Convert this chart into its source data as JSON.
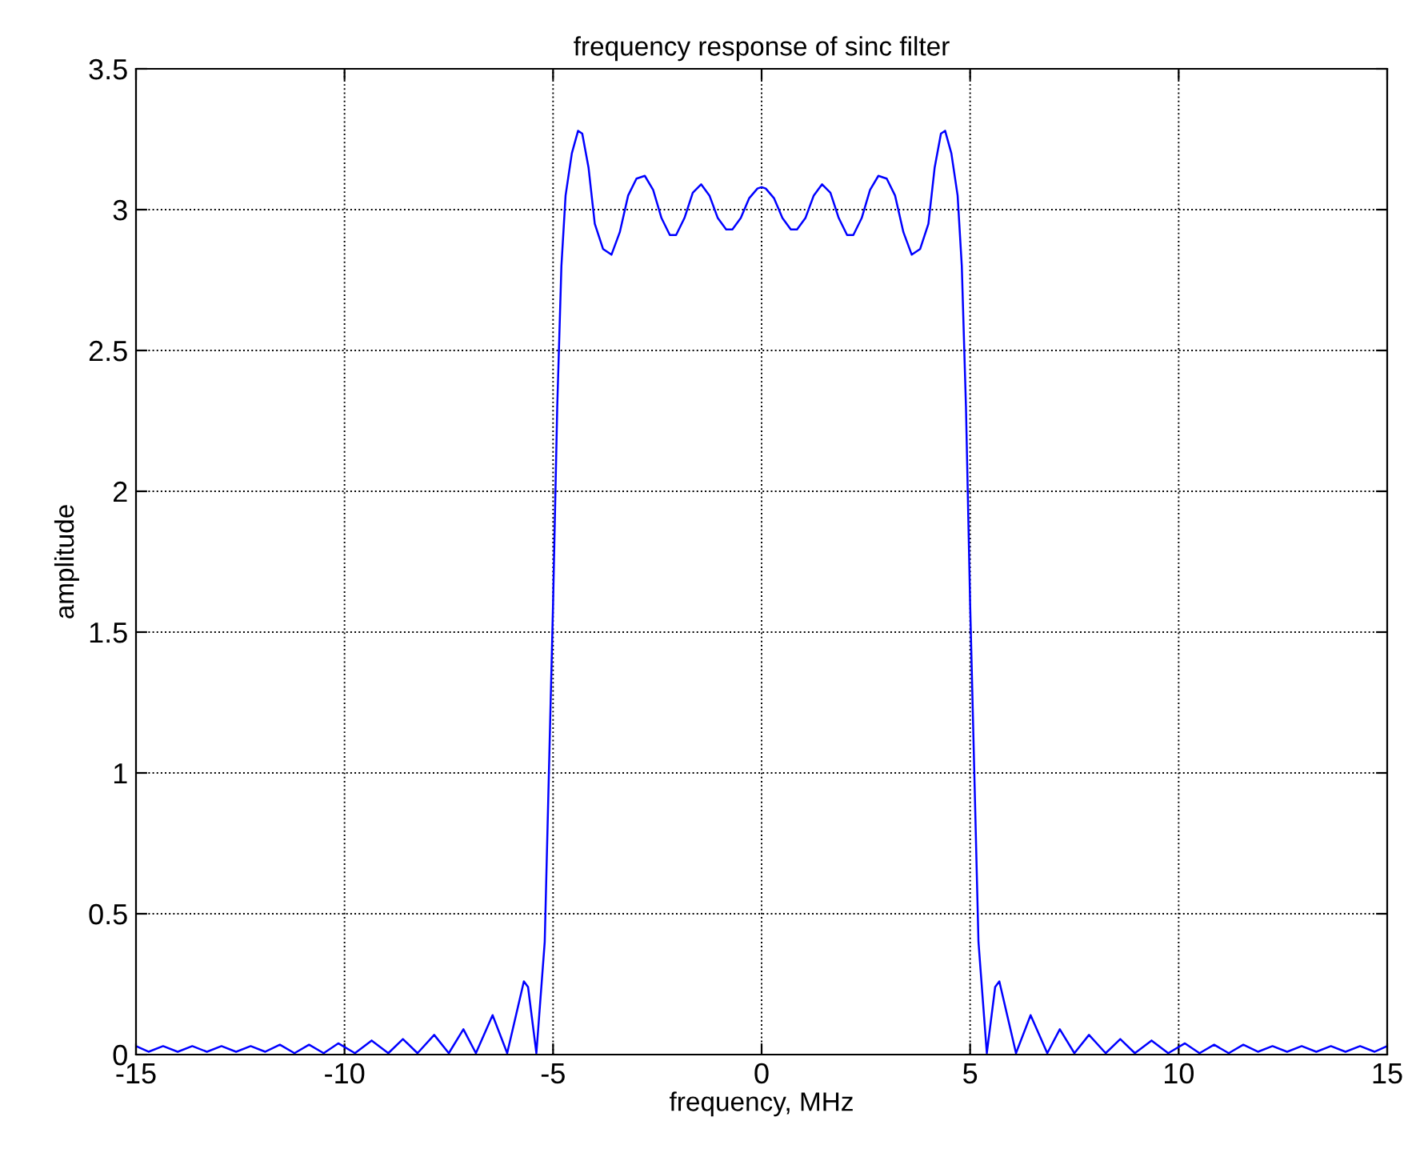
{
  "chart_data": {
    "type": "line",
    "title": "frequency response of sinc filter",
    "xlabel": "frequency, MHz",
    "ylabel": "amplitude",
    "xlim": [
      -15,
      15
    ],
    "ylim": [
      0,
      3.5
    ],
    "xticks": [
      -15,
      -10,
      -5,
      0,
      5,
      10,
      15
    ],
    "yticks": [
      0,
      0.5,
      1,
      1.5,
      2,
      2.5,
      3,
      3.5
    ],
    "grid": true,
    "legend": false,
    "marker": "none",
    "line_style": "solid",
    "series": [
      {
        "color": "#0000ff",
        "x": [
          -15,
          -14.7,
          -14.35,
          -14.0,
          -13.65,
          -13.3,
          -12.95,
          -12.6,
          -12.25,
          -11.9,
          -11.55,
          -11.2,
          -10.85,
          -10.5,
          -10.15,
          -9.75,
          -9.35,
          -8.95,
          -8.6,
          -8.25,
          -7.85,
          -7.5,
          -7.15,
          -6.85,
          -6.45,
          -6.1,
          -5.7,
          -5.6,
          -5.4,
          -5.2,
          -5.1,
          -5.0,
          -4.9,
          -4.8,
          -4.7,
          -4.55,
          -4.4,
          -4.3,
          -4.15,
          -4.0,
          -3.8,
          -3.6,
          -3.4,
          -3.2,
          -3.0,
          -2.8,
          -2.6,
          -2.4,
          -2.2,
          -2.05,
          -1.85,
          -1.65,
          -1.45,
          -1.25,
          -1.05,
          -0.85,
          -0.7,
          -0.5,
          -0.3,
          -0.1,
          0,
          0.1,
          0.3,
          0.5,
          0.7,
          0.85,
          1.05,
          1.25,
          1.45,
          1.65,
          1.85,
          2.05,
          2.2,
          2.4,
          2.6,
          2.8,
          3.0,
          3.2,
          3.4,
          3.6,
          3.8,
          4.0,
          4.15,
          4.3,
          4.4,
          4.55,
          4.7,
          4.8,
          4.9,
          5.0,
          5.1,
          5.2,
          5.4,
          5.6,
          5.7,
          6.1,
          6.45,
          6.85,
          7.15,
          7.5,
          7.85,
          8.25,
          8.6,
          8.95,
          9.35,
          9.75,
          10.15,
          10.5,
          10.85,
          11.2,
          11.55,
          11.9,
          12.25,
          12.6,
          12.95,
          13.3,
          13.65,
          14.0,
          14.35,
          14.7,
          15
        ],
        "values": [
          0.03,
          0.01,
          0.03,
          0.01,
          0.03,
          0.01,
          0.03,
          0.01,
          0.03,
          0.01,
          0.035,
          0.005,
          0.035,
          0.005,
          0.04,
          0.005,
          0.05,
          0.005,
          0.055,
          0.005,
          0.07,
          0.005,
          0.09,
          0.005,
          0.14,
          0.005,
          0.26,
          0.24,
          0.005,
          0.4,
          1.0,
          1.6,
          2.3,
          2.8,
          3.05,
          3.2,
          3.28,
          3.27,
          3.15,
          2.95,
          2.86,
          2.84,
          2.92,
          3.05,
          3.11,
          3.12,
          3.07,
          2.97,
          2.91,
          2.91,
          2.97,
          3.06,
          3.09,
          3.05,
          2.97,
          2.93,
          2.93,
          2.97,
          3.04,
          3.075,
          3.08,
          3.075,
          3.04,
          2.97,
          2.93,
          2.93,
          2.97,
          3.05,
          3.09,
          3.06,
          2.97,
          2.91,
          2.91,
          2.97,
          3.07,
          3.12,
          3.11,
          3.05,
          2.92,
          2.84,
          2.86,
          2.95,
          3.15,
          3.27,
          3.28,
          3.2,
          3.05,
          2.8,
          2.3,
          1.6,
          1.0,
          0.4,
          0.005,
          0.24,
          0.26,
          0.005,
          0.14,
          0.005,
          0.09,
          0.005,
          0.07,
          0.005,
          0.055,
          0.005,
          0.05,
          0.005,
          0.04,
          0.005,
          0.035,
          0.005,
          0.035,
          0.01,
          0.03,
          0.01,
          0.03,
          0.01,
          0.03,
          0.01,
          0.03,
          0.01,
          0.03
        ]
      }
    ]
  }
}
